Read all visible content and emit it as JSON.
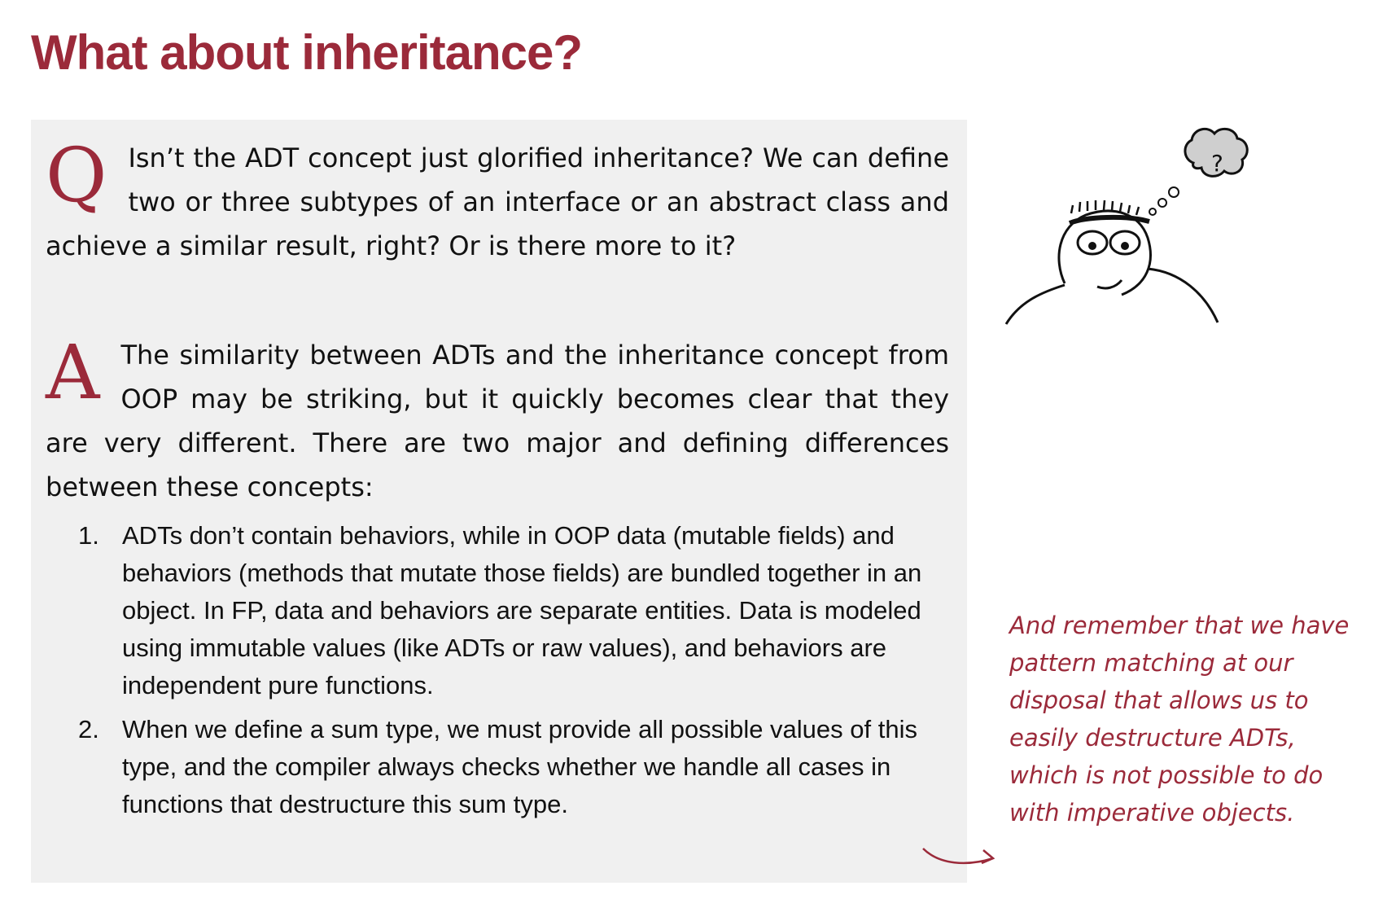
{
  "page": {
    "title": "What about inheritance?"
  },
  "qa": {
    "question_letter": "Q",
    "question_text": "Isn’t the ADT concept just glorified inheritance? We can define two or three subtypes of an interface or an abstract class and achieve a similar result, right? Or is there more to it?",
    "answer_letter": "A",
    "answer_text": "The similarity between ADTs and the inheritance concept from OOP may be striking, but it quickly becomes clear that they are very different. There are two major and defining differences between these concepts:",
    "differences": [
      {
        "number": "1.",
        "text": "ADTs don’t contain behaviors, while in OOP data (mutable fields) and behaviors (methods that mutate those fields) are bundled together in an object. In FP, data and behaviors are separate entities. Data is modeled using immutable values (like ADTs or raw values), and behaviors are independent pure functions."
      },
      {
        "number": "2.",
        "text": "When we define a sum type, we must provide all possible values of this type, and the compiler always checks whether we handle all cases in functions that destructure this sum type."
      }
    ]
  },
  "figure": {
    "thought_glyph": "?"
  },
  "side_note": {
    "text": "And remember that we have pattern matching at our disposal that allows us to easily destructure ADTs, which is not possible to do with imperative objects."
  },
  "colors": {
    "accent": "#9b2a3a",
    "box_background": "#f0f0f0",
    "text": "#111111"
  },
  "icons": {
    "figure": "thinking-person-icon",
    "arrow": "curved-arrow-icon"
  }
}
